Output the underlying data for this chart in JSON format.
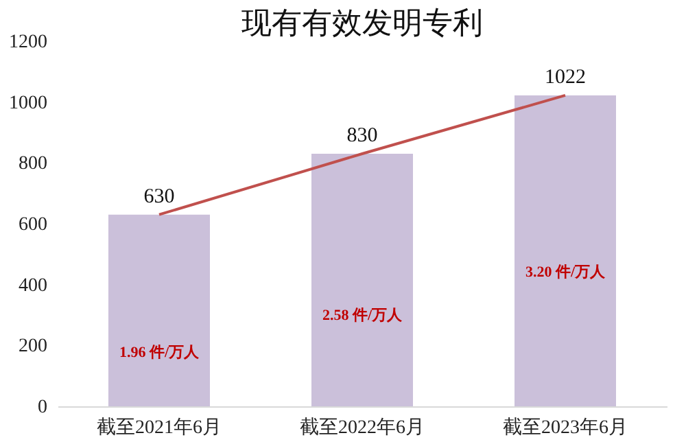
{
  "chart_data": {
    "type": "bar",
    "title": "现有有效发明专利",
    "categories": [
      "截至2021年6月",
      "截至2022年6月",
      "截至2023年6月"
    ],
    "series": [
      {
        "color": "#cbc0da",
        "values": [
          630,
          830,
          1022
        ],
        "value_labels": [
          "630",
          "830",
          "1022"
        ]
      },
      {
        "type": "line",
        "color": "#c0504d",
        "values": [
          630,
          830,
          1022
        ]
      }
    ],
    "ylim": [
      0,
      1200
    ],
    "yticks": [
      0,
      200,
      400,
      600,
      800,
      1000,
      1200
    ],
    "grid": false,
    "annotations": [
      "1.96 件/万人",
      "2.58 件/万人",
      "3.20 件/万人"
    ]
  }
}
